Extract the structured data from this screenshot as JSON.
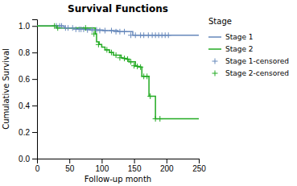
{
  "chart_data": {
    "type": "step",
    "title": "Survival Functions",
    "x_label": "Follow-up month",
    "y_label": "Cumulative Survival",
    "xlim": [
      0,
      250
    ],
    "ylim": [
      0.0,
      1.05
    ],
    "xticks": [
      0,
      50,
      100,
      150,
      200,
      250
    ],
    "yticks": [
      {
        "value": 0.0,
        "label": "0.0"
      },
      0.2,
      0.4,
      0.6,
      0.8,
      {
        "value": 1.0,
        "label": "1.0"
      }
    ],
    "grid": false,
    "legend": "right",
    "legend_title": "Stage",
    "series": [
      {
        "name": "Stage 1",
        "type": "step",
        "color": "#6688bb",
        "x": [
          0,
          28,
          42,
          52,
          62,
          72,
          82,
          92,
          102,
          115,
          125,
          135,
          148,
          158,
          168,
          175,
          185,
          195,
          250
        ],
        "values": [
          1.0,
          1.0,
          0.985,
          0.985,
          0.975,
          0.975,
          0.97,
          0.97,
          0.965,
          0.965,
          0.957,
          0.957,
          0.93,
          0.93,
          0.93,
          0.93,
          0.93,
          0.93,
          0.93
        ]
      },
      {
        "name": "Stage 2",
        "type": "step",
        "color": "#22aa22",
        "x": [
          0,
          25,
          30,
          85,
          90,
          92,
          96,
          100,
          105,
          112,
          118,
          125,
          130,
          133,
          138,
          142,
          148,
          152,
          155,
          158,
          162,
          168,
          173,
          178,
          183,
          250
        ],
        "values": [
          1.0,
          1.0,
          0.985,
          0.985,
          0.94,
          0.88,
          0.86,
          0.84,
          0.82,
          0.8,
          0.78,
          0.78,
          0.76,
          0.755,
          0.75,
          0.73,
          0.73,
          0.7,
          0.695,
          0.69,
          0.62,
          0.62,
          0.47,
          0.47,
          0.3,
          0.3
        ]
      },
      {
        "name": "Stage 1-censored",
        "type": "scatter",
        "marker": "plus",
        "color": "#6688bb",
        "x": [
          30,
          35,
          38,
          44,
          48,
          55,
          60,
          65,
          68,
          72,
          78,
          85,
          92,
          97,
          105,
          115,
          122,
          128,
          135,
          145,
          152,
          160,
          165,
          172,
          178,
          183,
          188,
          193,
          198,
          203
        ],
        "values": [
          1.0,
          1.0,
          1.0,
          0.985,
          0.985,
          0.985,
          0.975,
          0.975,
          0.975,
          0.975,
          0.97,
          0.97,
          0.97,
          0.965,
          0.965,
          0.965,
          0.957,
          0.957,
          0.957,
          0.93,
          0.93,
          0.93,
          0.93,
          0.93,
          0.93,
          0.93,
          0.93,
          0.93,
          0.93,
          0.93
        ]
      },
      {
        "name": "Stage 2-censored",
        "type": "scatter",
        "marker": "plus",
        "color": "#22aa22",
        "x": [
          27,
          32,
          75,
          88,
          95,
          108,
          115,
          122,
          128,
          135,
          140,
          145,
          150,
          155,
          160,
          165,
          170,
          175,
          183,
          190
        ],
        "values": [
          1.0,
          0.985,
          0.985,
          0.94,
          0.86,
          0.82,
          0.8,
          0.78,
          0.76,
          0.755,
          0.75,
          0.73,
          0.7,
          0.695,
          0.69,
          0.62,
          0.62,
          0.47,
          0.3,
          0.3
        ]
      }
    ]
  }
}
